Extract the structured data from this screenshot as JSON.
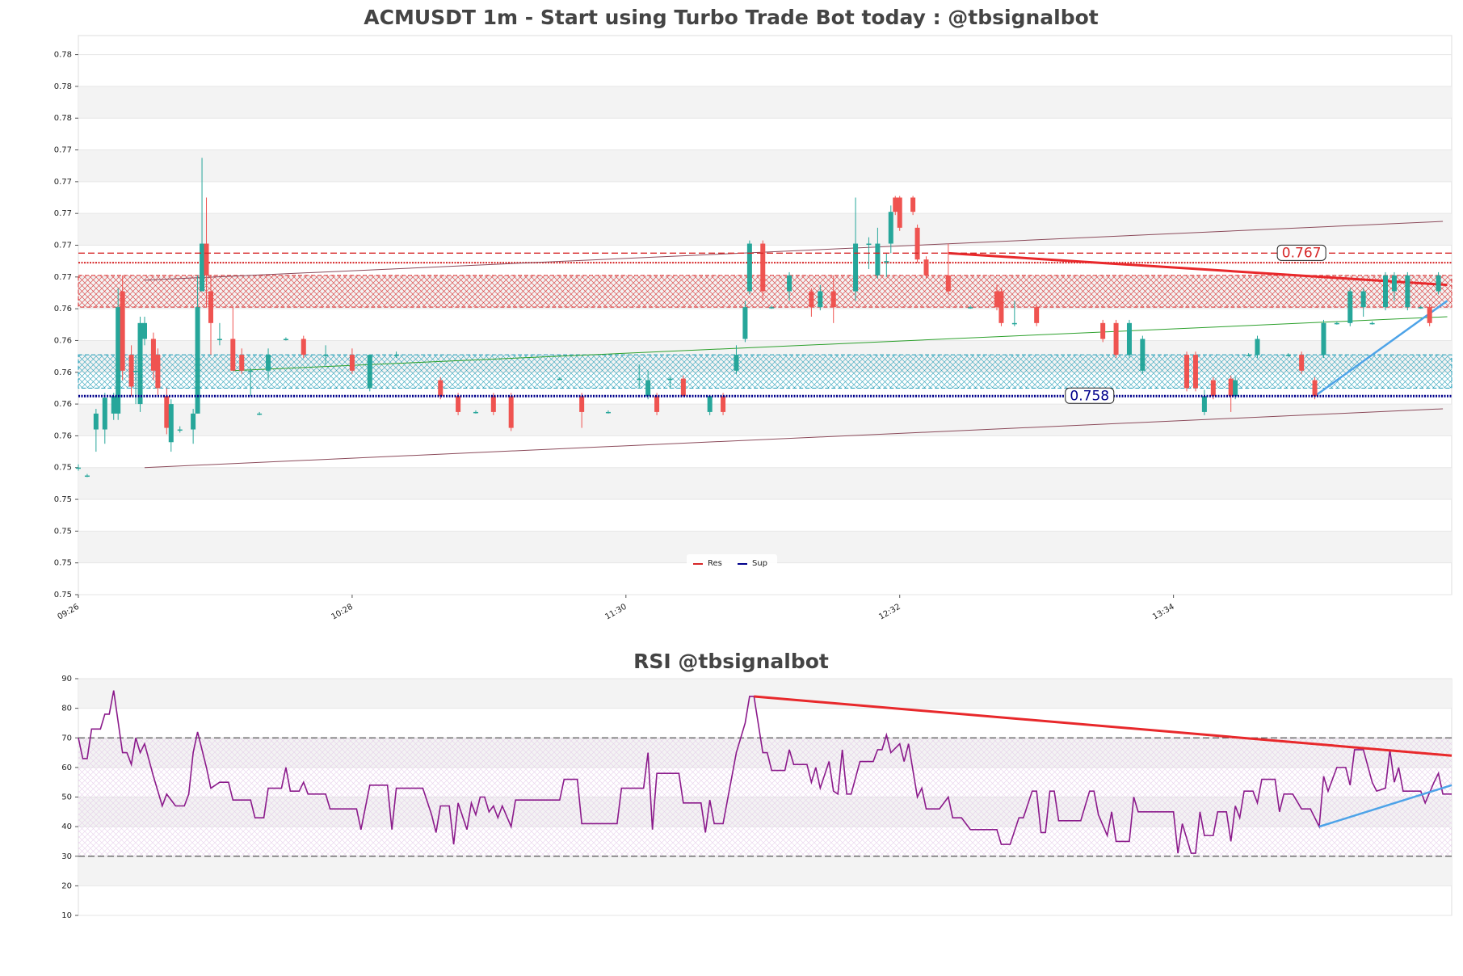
{
  "chart_data": [
    {
      "type": "candlestick",
      "title": "ACMUSDT 1m - Start using Turbo Trade Bot today : @tbsignalbot",
      "xlim": [
        0,
        311
      ],
      "ylim": [
        0.7455,
        0.7807
      ],
      "xticks": [
        {
          "value": 0,
          "label": "09:26"
        },
        {
          "value": 62,
          "label": "10:28"
        },
        {
          "value": 124,
          "label": "11:30"
        },
        {
          "value": 186,
          "label": "12:32"
        },
        {
          "value": 248,
          "label": "13:34"
        }
      ],
      "yticks": [
        {
          "value": 0.7455,
          "label": "0.75"
        },
        {
          "value": 0.7475,
          "label": "0.75"
        },
        {
          "value": 0.7495,
          "label": "0.75"
        },
        {
          "value": 0.7515,
          "label": "0.75"
        },
        {
          "value": 0.7535,
          "label": "0.75"
        },
        {
          "value": 0.7555,
          "label": "0.76"
        },
        {
          "value": 0.7575,
          "label": "0.76"
        },
        {
          "value": 0.7595,
          "label": "0.76"
        },
        {
          "value": 0.7615,
          "label": "0.76"
        },
        {
          "value": 0.7635,
          "label": "0.76"
        },
        {
          "value": 0.7655,
          "label": "0.77"
        },
        {
          "value": 0.7675,
          "label": "0.77"
        },
        {
          "value": 0.7695,
          "label": "0.77"
        },
        {
          "value": 0.7715,
          "label": "0.77"
        },
        {
          "value": 0.7735,
          "label": "0.77"
        },
        {
          "value": 0.7755,
          "label": "0.78"
        },
        {
          "value": 0.7775,
          "label": "0.78"
        },
        {
          "value": 0.7795,
          "label": "0.78"
        }
      ],
      "up_color": "#26a69a",
      "down_color": "#ef5350",
      "x": [
        0,
        2,
        4,
        6,
        8,
        9,
        10,
        12,
        13,
        14,
        15,
        17,
        18,
        20,
        21,
        23,
        26,
        27,
        28,
        29,
        30,
        32,
        35,
        37,
        39,
        41,
        43,
        47,
        51,
        56,
        62,
        66,
        72,
        82,
        86,
        90,
        94,
        98,
        109,
        114,
        120,
        127,
        129,
        131,
        134,
        137,
        143,
        146,
        149,
        151,
        152,
        155,
        157,
        161,
        166,
        168,
        171,
        176,
        179,
        181,
        183,
        184,
        185,
        186,
        189,
        190,
        192,
        197,
        202,
        208,
        209,
        212,
        217,
        232,
        235,
        238,
        241,
        251,
        253,
        255,
        257,
        261,
        262,
        265,
        267,
        274,
        277,
        280,
        282,
        285,
        288,
        291,
        293,
        296,
        298,
        301,
        304,
        306,
        308
      ],
      "open": [
        0.7535,
        0.753,
        0.7559,
        0.7559,
        0.7569,
        0.7569,
        0.7646,
        0.7606,
        0.7596,
        0.7575,
        0.7616,
        0.7616,
        0.7606,
        0.758,
        0.7551,
        0.7559,
        0.7559,
        0.7569,
        0.7646,
        0.7676,
        0.7646,
        0.7616,
        0.7616,
        0.7606,
        0.7596,
        0.7569,
        0.7596,
        0.7616,
        0.7616,
        0.7606,
        0.7606,
        0.7585,
        0.7606,
        0.759,
        0.758,
        0.757,
        0.758,
        0.758,
        0.7591,
        0.758,
        0.757,
        0.7591,
        0.758,
        0.758,
        0.7591,
        0.7591,
        0.757,
        0.758,
        0.7596,
        0.7616,
        0.7646,
        0.7676,
        0.7636,
        0.7646,
        0.7646,
        0.7636,
        0.7646,
        0.7646,
        0.7676,
        0.7656,
        0.7665,
        0.7676,
        0.7705,
        0.7705,
        0.7705,
        0.7686,
        0.7666,
        0.7656,
        0.7636,
        0.7646,
        0.7646,
        0.7626,
        0.7636,
        0.7626,
        0.7626,
        0.7606,
        0.7596,
        0.7606,
        0.7606,
        0.757,
        0.759,
        0.7591,
        0.758,
        0.7606,
        0.7606,
        0.7606,
        0.7606,
        0.759,
        0.7606,
        0.7626,
        0.7626,
        0.7636,
        0.7626,
        0.7636,
        0.7646,
        0.7636,
        0.7636,
        0.7636,
        0.7646
      ],
      "high": [
        0.7537,
        0.7531,
        0.7572,
        0.7582,
        0.7582,
        0.7648,
        0.7656,
        0.7612,
        0.7606,
        0.763,
        0.763,
        0.762,
        0.761,
        0.7585,
        0.7578,
        0.7561,
        0.7572,
        0.7656,
        0.773,
        0.7705,
        0.7656,
        0.7626,
        0.7636,
        0.761,
        0.7598,
        0.757,
        0.761,
        0.7617,
        0.7618,
        0.7612,
        0.761,
        0.7606,
        0.7608,
        0.7592,
        0.7582,
        0.7571,
        0.7582,
        0.7582,
        0.7592,
        0.7582,
        0.7571,
        0.76,
        0.7596,
        0.7582,
        0.7592,
        0.7593,
        0.758,
        0.7582,
        0.7612,
        0.764,
        0.7678,
        0.7678,
        0.7637,
        0.7658,
        0.7648,
        0.765,
        0.7656,
        0.7705,
        0.768,
        0.7686,
        0.767,
        0.77,
        0.7706,
        0.7706,
        0.7706,
        0.7688,
        0.7668,
        0.7676,
        0.7637,
        0.765,
        0.7648,
        0.764,
        0.7638,
        0.7628,
        0.7628,
        0.7628,
        0.7618,
        0.7608,
        0.7608,
        0.7584,
        0.7592,
        0.7593,
        0.7592,
        0.7607,
        0.7618,
        0.7607,
        0.7608,
        0.7592,
        0.7628,
        0.7627,
        0.7648,
        0.7648,
        0.7627,
        0.7658,
        0.7658,
        0.7658,
        0.7637,
        0.7638,
        0.7658
      ],
      "low": [
        0.7533,
        0.7529,
        0.7545,
        0.755,
        0.7565,
        0.7565,
        0.759,
        0.758,
        0.7575,
        0.757,
        0.7612,
        0.759,
        0.758,
        0.7556,
        0.7545,
        0.7557,
        0.755,
        0.7569,
        0.7646,
        0.7636,
        0.7606,
        0.7612,
        0.7596,
        0.7594,
        0.758,
        0.7568,
        0.759,
        0.7615,
        0.7604,
        0.76,
        0.7594,
        0.7583,
        0.7604,
        0.7578,
        0.7568,
        0.7569,
        0.7568,
        0.7558,
        0.759,
        0.756,
        0.7569,
        0.7585,
        0.7578,
        0.7568,
        0.7585,
        0.758,
        0.7568,
        0.7568,
        0.7594,
        0.7614,
        0.7644,
        0.764,
        0.7635,
        0.764,
        0.763,
        0.7634,
        0.7626,
        0.764,
        0.766,
        0.7654,
        0.7655,
        0.767,
        0.7694,
        0.7684,
        0.7694,
        0.7664,
        0.7654,
        0.7644,
        0.7635,
        0.7634,
        0.7624,
        0.7624,
        0.7624,
        0.7614,
        0.7604,
        0.7604,
        0.7594,
        0.7583,
        0.7583,
        0.7568,
        0.7578,
        0.757,
        0.7578,
        0.7605,
        0.7604,
        0.7605,
        0.7594,
        0.7578,
        0.7604,
        0.7625,
        0.7624,
        0.763,
        0.7625,
        0.7634,
        0.764,
        0.7634,
        0.7635,
        0.7624,
        0.7644
      ],
      "close": [
        0.7535,
        0.753,
        0.7569,
        0.7579,
        0.758,
        0.7636,
        0.7596,
        0.7586,
        0.7596,
        0.7626,
        0.7626,
        0.7596,
        0.7585,
        0.756,
        0.7575,
        0.7559,
        0.7569,
        0.7636,
        0.7676,
        0.7656,
        0.7626,
        0.7616,
        0.7596,
        0.7596,
        0.7596,
        0.7569,
        0.7606,
        0.7616,
        0.7606,
        0.7606,
        0.7596,
        0.7606,
        0.7606,
        0.758,
        0.757,
        0.757,
        0.757,
        0.756,
        0.7591,
        0.757,
        0.757,
        0.7591,
        0.759,
        0.757,
        0.7591,
        0.758,
        0.758,
        0.757,
        0.7606,
        0.7636,
        0.7676,
        0.7646,
        0.7636,
        0.7656,
        0.7636,
        0.7646,
        0.7636,
        0.7676,
        0.7676,
        0.7676,
        0.7665,
        0.7696,
        0.7696,
        0.7686,
        0.7696,
        0.7666,
        0.7656,
        0.7646,
        0.7636,
        0.7636,
        0.7626,
        0.7626,
        0.7626,
        0.7616,
        0.7606,
        0.7626,
        0.7616,
        0.7585,
        0.7585,
        0.758,
        0.758,
        0.758,
        0.759,
        0.7606,
        0.7616,
        0.7606,
        0.7596,
        0.758,
        0.7626,
        0.7626,
        0.7646,
        0.7646,
        0.7626,
        0.7656,
        0.7656,
        0.7656,
        0.7636,
        0.7626,
        0.7656
      ],
      "zones": [
        {
          "range": [
            0.7636,
            0.7656
          ],
          "color": "#d62728"
        },
        {
          "range": [
            0.7585,
            0.7606
          ],
          "color": "#1f9bb5"
        }
      ],
      "levels": [
        {
          "name": "Res",
          "value": 0.767,
          "label": "0.767",
          "color": "#d62728",
          "style": "dashed"
        },
        {
          "name": "Sup",
          "value": 0.758,
          "label": "0.758",
          "color": "#00008b",
          "style": "dotted"
        }
      ],
      "lines": [
        {
          "value": 0.7664,
          "color": "#d62728",
          "style": "dotted"
        }
      ],
      "trendlines": [
        {
          "x": [
            15,
            309
          ],
          "y": [
            0.7653,
            0.769
          ],
          "color": "#8b4a5a",
          "width": 1
        },
        {
          "x": [
            15,
            309
          ],
          "y": [
            0.7535,
            0.7572
          ],
          "color": "#8b4a5a",
          "width": 1
        },
        {
          "x": [
            35,
            310
          ],
          "y": [
            0.7596,
            0.763
          ],
          "color": "#2ca02c",
          "width": 1
        },
        {
          "x": [
            197,
            310
          ],
          "y": [
            0.767,
            0.765
          ],
          "color": "#e8282b",
          "width": 3
        },
        {
          "x": [
            280,
            310
          ],
          "y": [
            0.758,
            0.764
          ],
          "color": "#4da3e8",
          "width": 2.5
        }
      ]
    },
    {
      "type": "line",
      "title": "RSI @tbsignalbot",
      "xlim": [
        0,
        311
      ],
      "ylim": [
        10,
        90
      ],
      "yticks": [
        10,
        20,
        30,
        40,
        50,
        60,
        70,
        80,
        90
      ],
      "band": [
        30,
        70
      ],
      "levels": [
        70,
        30
      ],
      "x": [
        0,
        1,
        2,
        3,
        5,
        6,
        7,
        8,
        10,
        11,
        12,
        13,
        14,
        15,
        17,
        19,
        20,
        22,
        24,
        25,
        26,
        27,
        29,
        30,
        32,
        34,
        35,
        39,
        40,
        42,
        43,
        46,
        47,
        48,
        50,
        51,
        52,
        56,
        57,
        63,
        64,
        66,
        70,
        71,
        72,
        78,
        80,
        81,
        82,
        84,
        85,
        86,
        88,
        89,
        90,
        91,
        92,
        93,
        94,
        95,
        96,
        98,
        99,
        109,
        110,
        113,
        114,
        122,
        123,
        128,
        129,
        130,
        131,
        136,
        137,
        141,
        142,
        143,
        144,
        146,
        147,
        149,
        151,
        152,
        153,
        155,
        156,
        157,
        160,
        161,
        162,
        165,
        166,
        167,
        168,
        170,
        171,
        172,
        173,
        174,
        175,
        177,
        180,
        181,
        182,
        183,
        184,
        186,
        187,
        188,
        190,
        191,
        192,
        195,
        197,
        198,
        200,
        202,
        208,
        209,
        211,
        213,
        214,
        216,
        217,
        218,
        219,
        220,
        221,
        222,
        227,
        229,
        230,
        231,
        233,
        234,
        235,
        238,
        239,
        240,
        248,
        249,
        250,
        252,
        253,
        254,
        255,
        257,
        258,
        260,
        261,
        262,
        263,
        264,
        266,
        267,
        268,
        271,
        272,
        273,
        275,
        277,
        279,
        281,
        282,
        283,
        285,
        287,
        288,
        289,
        291,
        293,
        294,
        296,
        297,
        298,
        299,
        300,
        304,
        305,
        307,
        308,
        309,
        311
      ],
      "series": [
        {
          "name": "RSI",
          "color": "#8b1a8b",
          "values": [
            70,
            63,
            63,
            73,
            73,
            78,
            78,
            86,
            65,
            65,
            61,
            70,
            65,
            68,
            57,
            47,
            51,
            47,
            47,
            51,
            65,
            72,
            60,
            53,
            55,
            55,
            49,
            49,
            43,
            43,
            53,
            53,
            60,
            52,
            52,
            55,
            51,
            51,
            46,
            46,
            39,
            54,
            54,
            39,
            53,
            53,
            44,
            38,
            47,
            47,
            34,
            48,
            39,
            48,
            44,
            50,
            50,
            45,
            47,
            43,
            47,
            40,
            49,
            49,
            56,
            56,
            41,
            41,
            53,
            53,
            65,
            39,
            58,
            58,
            48,
            48,
            38,
            49,
            41,
            41,
            49,
            65,
            75,
            84,
            84,
            65,
            65,
            59,
            59,
            66,
            61,
            61,
            55,
            60,
            53,
            62,
            52,
            51,
            66,
            51,
            51,
            62,
            62,
            66,
            66,
            71,
            65,
            68,
            62,
            68,
            50,
            53,
            46,
            46,
            50,
            43,
            43,
            39,
            39,
            34,
            34,
            43,
            43,
            52,
            52,
            38,
            38,
            52,
            52,
            42,
            42,
            52,
            52,
            44,
            37,
            45,
            35,
            35,
            50,
            45,
            45,
            31,
            41,
            31,
            31,
            45,
            37,
            37,
            45,
            45,
            35,
            47,
            43,
            52,
            52,
            48,
            56,
            56,
            45,
            51,
            51,
            46,
            46,
            40,
            57,
            52,
            60,
            60,
            54,
            66,
            66,
            55,
            52,
            53,
            66,
            55,
            60,
            52,
            52,
            48,
            55,
            58,
            51,
            51
          ]
        }
      ],
      "trendlines": [
        {
          "x": [
            153,
            311
          ],
          "y": [
            84,
            64
          ],
          "color": "#e8282b",
          "width": 3
        },
        {
          "x": [
            281,
            311
          ],
          "y": [
            40,
            54
          ],
          "color": "#4da3e8",
          "width": 2.5
        }
      ]
    }
  ]
}
